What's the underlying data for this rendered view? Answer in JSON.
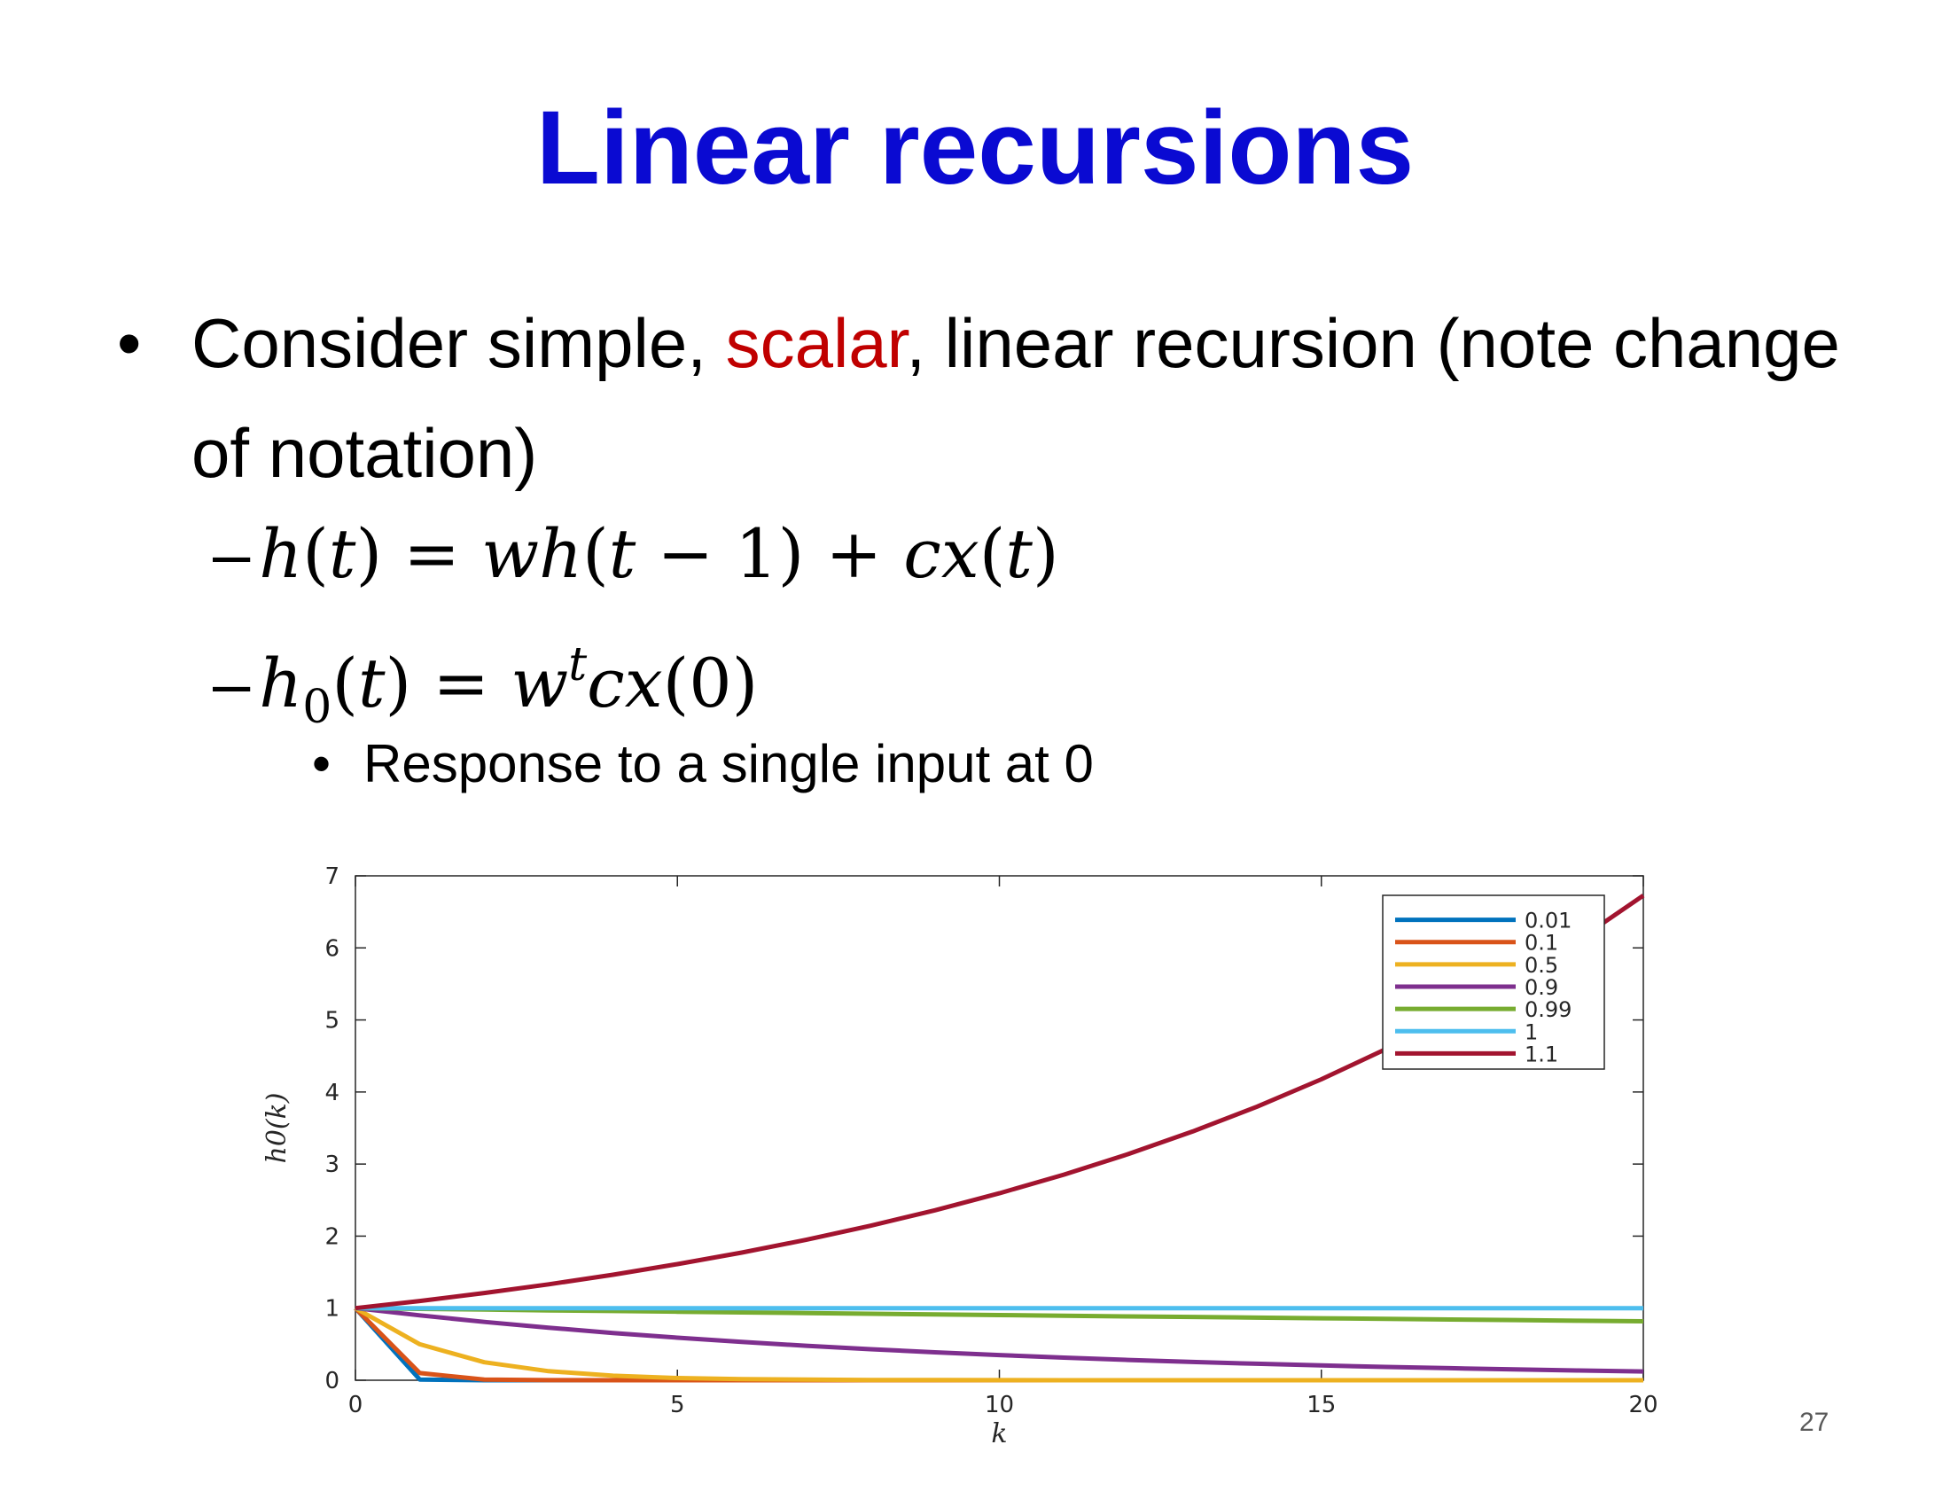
{
  "slide": {
    "title": "Linear recursions",
    "bullet_marker": "•",
    "bullet1": {
      "before": "Consider simple, ",
      "highlight": "scalar",
      "after": ", linear recursion (note change of notation)"
    },
    "equation1": "h(t) = wh(t − 1) + cx(t)",
    "equation2": "h0(t) = w^t cx(0)",
    "sub_bullet": "Response to a single input at 0",
    "page_number": "27"
  },
  "colors": {
    "title": "#0a0ad2",
    "highlight": "#c00000"
  },
  "chart_data": {
    "type": "line",
    "xlabel": "k",
    "ylabel": "h0(k)",
    "xlim": [
      0,
      20
    ],
    "ylim": [
      0,
      7
    ],
    "xticks": [
      0,
      5,
      10,
      15,
      20
    ],
    "yticks": [
      0,
      1,
      2,
      3,
      4,
      5,
      6,
      7
    ],
    "grid": false,
    "legend_position": "top-right",
    "x": [
      0,
      1,
      2,
      3,
      4,
      5,
      6,
      7,
      8,
      9,
      10,
      11,
      12,
      13,
      14,
      15,
      16,
      17,
      18,
      19,
      20
    ],
    "series": [
      {
        "name": "0.01",
        "color": "#0072bd",
        "values": [
          1,
          0.01,
          0.0001,
          0,
          0,
          0,
          0,
          0,
          0,
          0,
          0,
          0,
          0,
          0,
          0,
          0,
          0,
          0,
          0,
          0,
          0
        ]
      },
      {
        "name": "0.1",
        "color": "#d95319",
        "values": [
          1,
          0.1,
          0.01,
          0.001,
          0.0001,
          0,
          0,
          0,
          0,
          0,
          0,
          0,
          0,
          0,
          0,
          0,
          0,
          0,
          0,
          0,
          0
        ]
      },
      {
        "name": "0.5",
        "color": "#edb120",
        "values": [
          1,
          0.5,
          0.25,
          0.125,
          0.0625,
          0.031,
          0.016,
          0.008,
          0.004,
          0.002,
          0.001,
          0,
          0,
          0,
          0,
          0,
          0,
          0,
          0,
          0,
          0
        ]
      },
      {
        "name": "0.9",
        "color": "#7e2f8e",
        "values": [
          1,
          0.9,
          0.81,
          0.729,
          0.656,
          0.59,
          0.531,
          0.478,
          0.43,
          0.387,
          0.349,
          0.314,
          0.282,
          0.254,
          0.229,
          0.206,
          0.185,
          0.167,
          0.15,
          0.135,
          0.122
        ]
      },
      {
        "name": "0.99",
        "color": "#77ac30",
        "values": [
          1,
          0.99,
          0.98,
          0.97,
          0.961,
          0.951,
          0.941,
          0.932,
          0.923,
          0.914,
          0.904,
          0.895,
          0.886,
          0.878,
          0.869,
          0.86,
          0.851,
          0.843,
          0.835,
          0.826,
          0.818
        ]
      },
      {
        "name": "1",
        "color": "#4dbeee",
        "values": [
          1,
          1,
          1,
          1,
          1,
          1,
          1,
          1,
          1,
          1,
          1,
          1,
          1,
          1,
          1,
          1,
          1,
          1,
          1,
          1,
          1
        ]
      },
      {
        "name": "1.1",
        "color": "#a2142f",
        "values": [
          1,
          1.1,
          1.21,
          1.331,
          1.464,
          1.611,
          1.772,
          1.949,
          2.144,
          2.358,
          2.594,
          2.853,
          3.138,
          3.452,
          3.797,
          4.177,
          4.595,
          5.054,
          5.56,
          6.116,
          6.727
        ]
      }
    ]
  }
}
